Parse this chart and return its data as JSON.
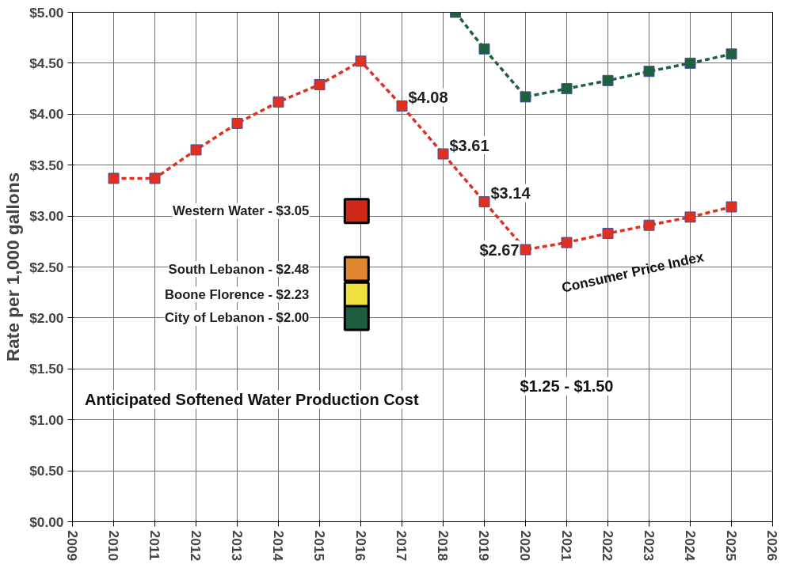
{
  "chart_data": {
    "type": "line",
    "ylabel": "Rate per 1,000 gallons",
    "xlim": [
      2009,
      2026
    ],
    "xticks": [
      2009,
      2010,
      2011,
      2012,
      2013,
      2014,
      2015,
      2016,
      2017,
      2018,
      2019,
      2020,
      2021,
      2022,
      2023,
      2024,
      2025,
      2026
    ],
    "ylim": [
      0,
      5
    ],
    "yticks": [
      {
        "value": 0,
        "label": "$0.00"
      },
      {
        "value": 0.5,
        "label": "$0.50"
      },
      {
        "value": 1,
        "label": "$1.00"
      },
      {
        "value": 1.5,
        "label": "$1.50"
      },
      {
        "value": 2,
        "label": "$2.00"
      },
      {
        "value": 2.5,
        "label": "$2.50"
      },
      {
        "value": 3,
        "label": "$3.00"
      },
      {
        "value": 3.5,
        "label": "$3.50"
      },
      {
        "value": 4,
        "label": "$4.00"
      },
      {
        "value": 4.5,
        "label": "$4.50"
      },
      {
        "value": 5,
        "label": "$5.00"
      }
    ],
    "grid": true,
    "marker": "square",
    "line_style": "dashed",
    "series": [
      {
        "color": "#e03020",
        "x": [
          2010,
          2011,
          2012,
          2013,
          2014,
          2015,
          2016,
          2017,
          2018,
          2019,
          2020,
          2021,
          2022,
          2023,
          2024,
          2025
        ],
        "values": [
          3.37,
          3.37,
          3.65,
          3.91,
          4.12,
          4.29,
          4.52,
          4.08,
          3.61,
          3.14,
          2.67,
          2.74,
          2.83,
          2.91,
          2.99,
          3.09
        ],
        "value_labels": [
          null,
          null,
          null,
          null,
          null,
          null,
          null,
          "$4.08",
          "$3.61",
          "$3.14",
          "$2.67",
          null,
          null,
          null,
          null,
          null
        ]
      },
      {
        "color": "#1e6040",
        "x": [
          2018.3,
          2019,
          2020,
          2021,
          2022,
          2023,
          2024,
          2025
        ],
        "values": [
          5.0,
          4.64,
          4.17,
          4.25,
          4.33,
          4.42,
          4.5,
          4.59
        ]
      },
      {
        "type": "scatter",
        "name": "Western Water - $3.05",
        "color": "#d02818",
        "x": [
          2015.9
        ],
        "values": [
          3.05
        ]
      },
      {
        "type": "scatter",
        "name": "South Lebanon - $2.48",
        "color": "#e08830",
        "x": [
          2015.9
        ],
        "values": [
          2.48
        ]
      },
      {
        "type": "scatter",
        "name": "Boone Florence - $2.23",
        "color": "#f0e040",
        "x": [
          2015.9
        ],
        "values": [
          2.23
        ]
      },
      {
        "type": "scatter",
        "name": "City of Lebanon - $2.00",
        "color": "#1e5e40",
        "x": [
          2015.9
        ],
        "values": [
          2.0
        ]
      }
    ],
    "annotations": [
      "Consumer Price Index",
      "Anticipated Softened Water Production Cost",
      "$1.25 - $1.50"
    ]
  }
}
